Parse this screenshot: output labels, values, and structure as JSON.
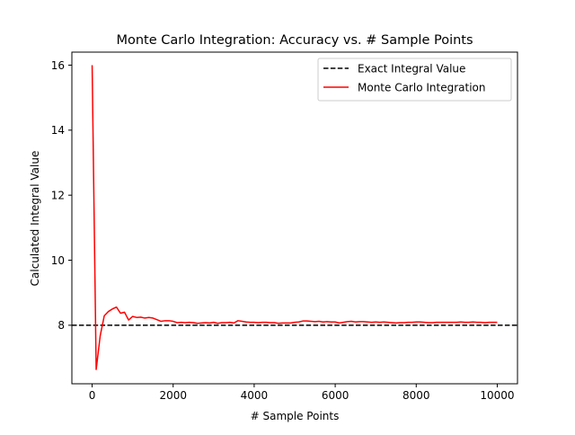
{
  "chart_data": {
    "type": "line",
    "title": "Monte Carlo Integration: Accuracy vs. # Sample Points",
    "xlabel": "# Sample Points",
    "ylabel": "Calculated Integral Value",
    "xlim": [
      -500,
      10500
    ],
    "ylim": [
      6.2,
      16.4
    ],
    "xticks": [
      0,
      2000,
      4000,
      6000,
      8000,
      10000
    ],
    "xtick_labels": [
      "0",
      "2000",
      "4000",
      "6000",
      "8000",
      "10000"
    ],
    "yticks": [
      8,
      10,
      12,
      14,
      16
    ],
    "ytick_labels": [
      "8",
      "10",
      "12",
      "14",
      "16"
    ],
    "grid": false,
    "legend_position": "upper right",
    "series": [
      {
        "name": "Exact Integral Value",
        "style": "dashed",
        "color": "#000000",
        "type": "hline",
        "y": 8.0
      },
      {
        "name": "Monte Carlo Integration",
        "style": "solid",
        "color": "#ff0000",
        "x": [
          0,
          100,
          200,
          300,
          400,
          500,
          600,
          700,
          800,
          900,
          1000,
          1100,
          1200,
          1300,
          1400,
          1500,
          1600,
          1700,
          1800,
          1900,
          2000,
          2100,
          2200,
          2300,
          2400,
          2500,
          2600,
          2700,
          2800,
          2900,
          3000,
          3100,
          3200,
          3300,
          3400,
          3500,
          3600,
          3700,
          3800,
          3900,
          4000,
          4100,
          4200,
          4300,
          4400,
          4500,
          4600,
          4700,
          4800,
          4900,
          5000,
          5100,
          5200,
          5300,
          5400,
          5500,
          5600,
          5700,
          5800,
          5900,
          6000,
          6100,
          6200,
          6300,
          6400,
          6500,
          6600,
          6700,
          6800,
          6900,
          7000,
          7100,
          7200,
          7300,
          7400,
          7500,
          7600,
          7700,
          7800,
          7900,
          8000,
          8100,
          8200,
          8300,
          8400,
          8500,
          8600,
          8700,
          8800,
          8900,
          9000,
          9100,
          9200,
          9300,
          9400,
          9500,
          9600,
          9700,
          9800,
          9900,
          10000
        ],
        "values": [
          16.0,
          6.64,
          7.68,
          8.29,
          8.42,
          8.5,
          8.56,
          8.37,
          8.4,
          8.16,
          8.27,
          8.24,
          8.25,
          8.22,
          8.24,
          8.22,
          8.17,
          8.12,
          8.14,
          8.14,
          8.12,
          8.08,
          8.09,
          8.08,
          8.09,
          8.08,
          8.06,
          8.07,
          8.08,
          8.07,
          8.09,
          8.06,
          8.08,
          8.08,
          8.09,
          8.07,
          8.14,
          8.12,
          8.1,
          8.09,
          8.09,
          8.08,
          8.09,
          8.09,
          8.08,
          8.08,
          8.06,
          8.07,
          8.07,
          8.07,
          8.09,
          8.1,
          8.13,
          8.13,
          8.12,
          8.11,
          8.12,
          8.1,
          8.11,
          8.1,
          8.1,
          8.07,
          8.09,
          8.11,
          8.12,
          8.1,
          8.11,
          8.11,
          8.1,
          8.09,
          8.1,
          8.09,
          8.1,
          8.09,
          8.08,
          8.07,
          8.08,
          8.08,
          8.09,
          8.09,
          8.1,
          8.1,
          8.09,
          8.08,
          8.08,
          8.09,
          8.09,
          8.09,
          8.09,
          8.09,
          8.09,
          8.1,
          8.09,
          8.09,
          8.1,
          8.09,
          8.09,
          8.08,
          8.09,
          8.09,
          8.09
        ]
      }
    ]
  }
}
